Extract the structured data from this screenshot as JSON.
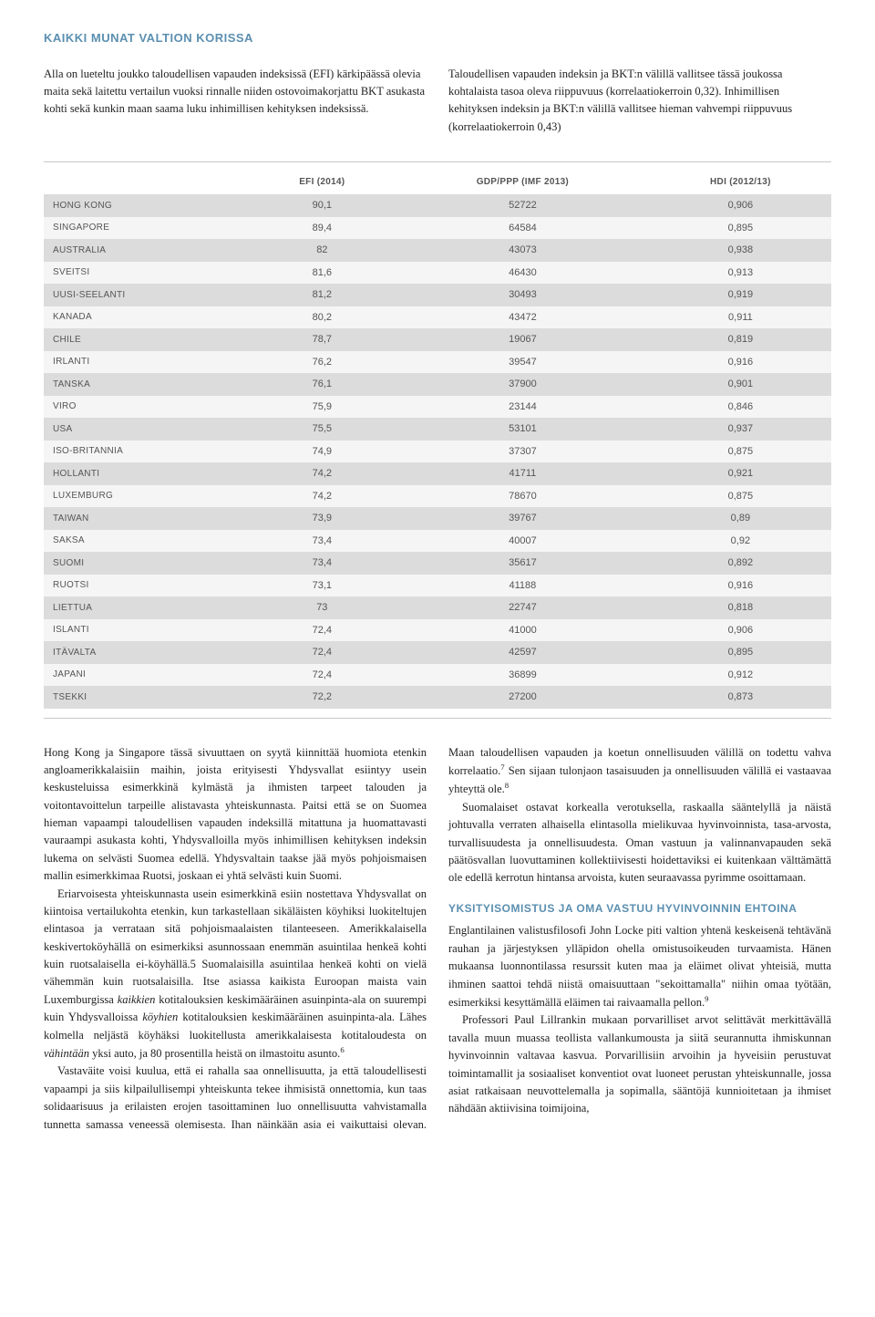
{
  "heading": "KAIKKI MUNAT VALTION KORISSA",
  "intro": {
    "left": "Alla on lueteltu joukko taloudellisen vapauden indeksissä (EFI) kärkipäässä olevia maita sekä laitettu vertailun vuoksi rinnalle niiden ostovoimakorjattu BKT asukasta kohti sekä kunkin maan saama luku inhimillisen kehityksen indeksissä.",
    "right": "Taloudellisen vapauden indeksin ja BKT:n välillä vallitsee tässä joukossa kohtalaista tasoa oleva riippuvuus (korrelaatiokerroin 0,32). Inhimillisen kehityksen indeksin ja BKT:n välillä vallitsee hieman vahvempi riippuvuus (korrelaatiokerroin 0,43)"
  },
  "table": {
    "columns": [
      "",
      "EFI (2014)",
      "GDP/PPP (IMF 2013)",
      "HDI (2012/13)"
    ],
    "rows": [
      [
        "HONG KONG",
        "90,1",
        "52722",
        "0,906"
      ],
      [
        "SINGAPORE",
        "89,4",
        "64584",
        "0,895"
      ],
      [
        "AUSTRALIA",
        "82",
        "43073",
        "0,938"
      ],
      [
        "SVEITSI",
        "81,6",
        "46430",
        "0,913"
      ],
      [
        "UUSI-SEELANTI",
        "81,2",
        "30493",
        "0,919"
      ],
      [
        "KANADA",
        "80,2",
        "43472",
        "0,911"
      ],
      [
        "CHILE",
        "78,7",
        "19067",
        "0,819"
      ],
      [
        "IRLANTI",
        "76,2",
        "39547",
        "0,916"
      ],
      [
        "TANSKA",
        "76,1",
        "37900",
        "0,901"
      ],
      [
        "VIRO",
        "75,9",
        "23144",
        "0,846"
      ],
      [
        "USA",
        "75,5",
        "53101",
        "0,937"
      ],
      [
        "ISO-BRITANNIA",
        "74,9",
        "37307",
        "0,875"
      ],
      [
        "HOLLANTI",
        "74,2",
        "41711",
        "0,921"
      ],
      [
        "LUXEMBURG",
        "74,2",
        "78670",
        "0,875"
      ],
      [
        "TAIWAN",
        "73,9",
        "39767",
        "0,89"
      ],
      [
        "SAKSA",
        "73,4",
        "40007",
        "0,92"
      ],
      [
        "SUOMI",
        "73,4",
        "35617",
        "0,892"
      ],
      [
        "RUOTSI",
        "73,1",
        "41188",
        "0,916"
      ],
      [
        "LIETTUA",
        "73",
        "22747",
        "0,818"
      ],
      [
        "ISLANTI",
        "72,4",
        "41000",
        "0,906"
      ],
      [
        "ITÄVALTA",
        "72,4",
        "42597",
        "0,895"
      ],
      [
        "JAPANI",
        "72,4",
        "36899",
        "0,912"
      ],
      [
        "TSEKKI",
        "72,2",
        "27200",
        "0,873"
      ]
    ]
  },
  "section2_heading": "YKSITYISOMISTUS JA OMA VASTUU HYVINVOINNIN EHTOINA"
}
